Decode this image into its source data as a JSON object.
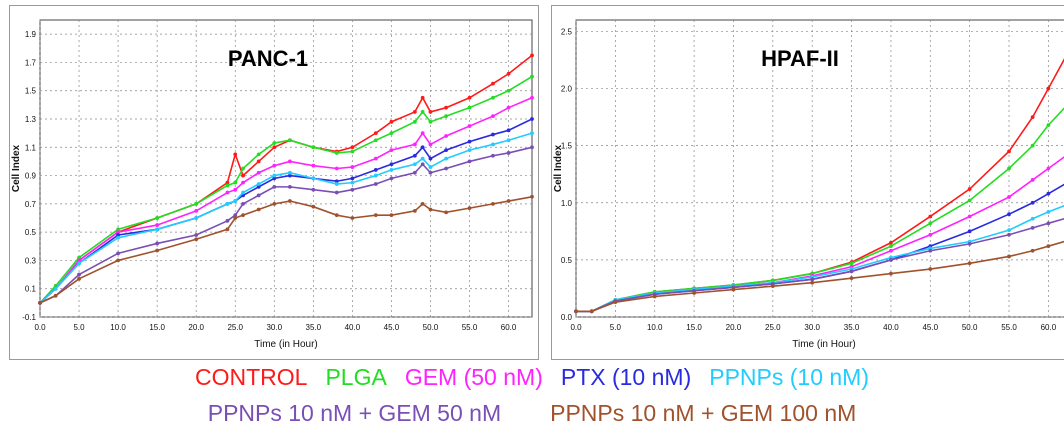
{
  "colors": {
    "CONTROL": "#ff1a1a",
    "PLGA": "#22dd22",
    "GEM (50 nM)": "#ff22ff",
    "PTX (10 nM)": "#2a2ae0",
    "PPNPs (10 nM)": "#22ccff",
    "PPNPs 10 nM + GEM 50 nM": "#7a4fb5",
    "PPNPs 10 nM + GEM 100 nM": "#a0522d"
  },
  "legend": {
    "row1": [
      "CONTROL",
      "PLGA",
      "GEM (50 nM)",
      "PTX (10 nM)",
      "PPNPs (10 nM)"
    ],
    "row2": [
      "PPNPs 10 nM + GEM 50 nM",
      "PPNPs 10 nM + GEM 100 nM"
    ]
  },
  "chart_data": [
    {
      "type": "line",
      "title": "PANC-1",
      "xlabel": "Time (in Hour)",
      "ylabel": "Cell Index",
      "xlim": [
        0,
        63
      ],
      "ylim": [
        -0.1,
        2.0
      ],
      "x_ticks": [
        "0.0",
        "5.0",
        "10.0",
        "15.0",
        "20.0",
        "25.0",
        "30.0",
        "35.0",
        "40.0",
        "45.0",
        "50.0",
        "55.0",
        "60.0"
      ],
      "y_ticks": [
        "-0.1",
        "0.1",
        "0.3",
        "0.5",
        "0.7",
        "0.9",
        "1.1",
        "1.3",
        "1.5",
        "1.7",
        "1.9"
      ],
      "grid": true,
      "x": [
        0,
        2,
        5,
        10,
        15,
        20,
        24,
        25,
        26,
        28,
        30,
        32,
        35,
        38,
        40,
        43,
        45,
        48,
        49,
        50,
        52,
        55,
        58,
        60,
        63
      ],
      "series": [
        {
          "name": "CONTROL",
          "values": [
            0.0,
            0.1,
            0.3,
            0.5,
            0.6,
            0.7,
            0.85,
            1.05,
            0.9,
            1.0,
            1.1,
            1.15,
            1.1,
            1.07,
            1.1,
            1.2,
            1.28,
            1.35,
            1.45,
            1.35,
            1.38,
            1.45,
            1.55,
            1.62,
            1.75
          ]
        },
        {
          "name": "PLGA",
          "values": [
            0.0,
            0.12,
            0.32,
            0.52,
            0.6,
            0.7,
            0.83,
            0.85,
            0.95,
            1.05,
            1.13,
            1.15,
            1.1,
            1.06,
            1.07,
            1.15,
            1.2,
            1.28,
            1.35,
            1.28,
            1.32,
            1.38,
            1.45,
            1.5,
            1.6
          ]
        },
        {
          "name": "GEM (50 nM)",
          "values": [
            0.0,
            0.1,
            0.3,
            0.5,
            0.55,
            0.65,
            0.78,
            0.8,
            0.85,
            0.92,
            0.97,
            1.0,
            0.97,
            0.95,
            0.96,
            1.02,
            1.08,
            1.12,
            1.2,
            1.12,
            1.18,
            1.25,
            1.32,
            1.38,
            1.45
          ]
        },
        {
          "name": "PTX (10 nM)",
          "values": [
            0.0,
            0.1,
            0.28,
            0.48,
            0.52,
            0.6,
            0.7,
            0.72,
            0.76,
            0.82,
            0.88,
            0.9,
            0.88,
            0.86,
            0.88,
            0.94,
            0.98,
            1.04,
            1.1,
            1.02,
            1.08,
            1.14,
            1.19,
            1.22,
            1.3
          ]
        },
        {
          "name": "PPNPs (10 nM)",
          "values": [
            0.0,
            0.1,
            0.28,
            0.46,
            0.52,
            0.6,
            0.7,
            0.72,
            0.78,
            0.84,
            0.9,
            0.92,
            0.88,
            0.84,
            0.85,
            0.9,
            0.94,
            0.98,
            1.02,
            0.96,
            1.02,
            1.08,
            1.12,
            1.15,
            1.2
          ]
        },
        {
          "name": "PPNPs 10 nM + GEM 50 nM",
          "values": [
            0.0,
            0.05,
            0.2,
            0.35,
            0.42,
            0.48,
            0.58,
            0.62,
            0.7,
            0.76,
            0.82,
            0.82,
            0.8,
            0.78,
            0.8,
            0.84,
            0.88,
            0.92,
            0.98,
            0.92,
            0.95,
            1.0,
            1.04,
            1.06,
            1.1
          ]
        },
        {
          "name": "PPNPs 10 nM + GEM 100 nM",
          "values": [
            0.0,
            0.05,
            0.17,
            0.3,
            0.37,
            0.45,
            0.52,
            0.6,
            0.62,
            0.66,
            0.7,
            0.72,
            0.68,
            0.62,
            0.6,
            0.62,
            0.62,
            0.65,
            0.7,
            0.66,
            0.64,
            0.67,
            0.7,
            0.72,
            0.75
          ]
        }
      ]
    },
    {
      "type": "line",
      "title": "HPAF-II",
      "xlabel": "Time (in Hour)",
      "ylabel": "Cell Index",
      "xlim": [
        0,
        63
      ],
      "ylim": [
        0.0,
        2.6
      ],
      "x_ticks": [
        "0.0",
        "5.0",
        "10.0",
        "15.0",
        "20.0",
        "25.0",
        "30.0",
        "35.0",
        "40.0",
        "45.0",
        "50.0",
        "55.0",
        "60.0"
      ],
      "y_ticks": [
        "0.0",
        "0.5",
        "1.0",
        "1.5",
        "2.0",
        "2.5"
      ],
      "grid": true,
      "x": [
        0,
        2,
        5,
        10,
        15,
        20,
        25,
        30,
        35,
        40,
        45,
        50,
        55,
        58,
        60,
        63
      ],
      "series": [
        {
          "name": "CONTROL",
          "values": [
            0.05,
            0.05,
            0.15,
            0.22,
            0.25,
            0.28,
            0.32,
            0.38,
            0.48,
            0.65,
            0.88,
            1.12,
            1.45,
            1.75,
            2.0,
            2.38
          ]
        },
        {
          "name": "PLGA",
          "values": [
            0.05,
            0.05,
            0.15,
            0.22,
            0.25,
            0.28,
            0.32,
            0.38,
            0.47,
            0.62,
            0.82,
            1.02,
            1.3,
            1.5,
            1.68,
            1.9
          ]
        },
        {
          "name": "GEM (50 nM)",
          "values": [
            0.05,
            0.05,
            0.14,
            0.21,
            0.24,
            0.27,
            0.3,
            0.36,
            0.44,
            0.58,
            0.72,
            0.88,
            1.05,
            1.2,
            1.3,
            1.45
          ]
        },
        {
          "name": "PTX (10 nM)",
          "values": [
            0.05,
            0.05,
            0.14,
            0.2,
            0.23,
            0.26,
            0.29,
            0.33,
            0.4,
            0.5,
            0.62,
            0.75,
            0.9,
            1.0,
            1.08,
            1.2
          ]
        },
        {
          "name": "PPNPs (10 nM)",
          "values": [
            0.05,
            0.05,
            0.15,
            0.21,
            0.24,
            0.27,
            0.3,
            0.35,
            0.42,
            0.52,
            0.6,
            0.66,
            0.76,
            0.86,
            0.92,
            1.0
          ]
        },
        {
          "name": "PPNPs 10 nM + GEM 50 nM",
          "values": [
            0.05,
            0.05,
            0.14,
            0.2,
            0.23,
            0.26,
            0.29,
            0.33,
            0.4,
            0.5,
            0.58,
            0.64,
            0.72,
            0.78,
            0.82,
            0.88
          ]
        },
        {
          "name": "PPNPs 10 nM + GEM 100 nM",
          "values": [
            0.05,
            0.05,
            0.13,
            0.18,
            0.21,
            0.24,
            0.27,
            0.3,
            0.34,
            0.38,
            0.42,
            0.47,
            0.53,
            0.58,
            0.62,
            0.68
          ]
        }
      ]
    }
  ]
}
